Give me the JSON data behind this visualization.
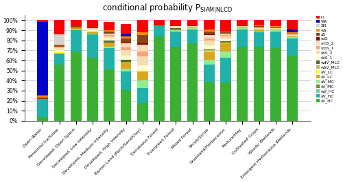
{
  "categories": [
    "Open Water",
    "Perennial Ice/Snow",
    "Developed, Open Space",
    "Developed, Low Intensity",
    "Developed, Medium Intensity",
    "Developed, High Intensity",
    "Barren Land (Rock/Sand/Clay)",
    "Deciduous Forest",
    "Evergreen Forest",
    "Mixed Forest",
    "Shrub/Scrub",
    "Grassland/Herbaceous",
    "Pasture/Hay",
    "Cultivated Crops",
    "Woody Wetlands",
    "Emergent Herbaceous Wetlands"
  ],
  "siam_labels": [
    "sV_HC",
    "aV_HC",
    "wV_HC",
    "sV_MC",
    "aV_MC",
    "sV_LC",
    "aV_LC",
    "wbV_MLC",
    "wdV_MLC",
    "sbS_1",
    "sbS_2",
    "smS_1",
    "smS_2",
    "sdS",
    "aS",
    "wS",
    "SN",
    "WA",
    "O"
  ],
  "colors": [
    "#3CB034",
    "#20B2AA",
    "#66CDAA",
    "#6B8E23",
    "#90EE90",
    "#DAA520",
    "#FFFF00",
    "#BDB76B",
    "#556B2F",
    "#FFFACD",
    "#F5DEB3",
    "#FFA07A",
    "#FFDAB9",
    "#8B0000",
    "#8B4513",
    "#FF8C00",
    "#D3D3D3",
    "#0000CC",
    "#FF0000"
  ],
  "vals": {
    "Open Water": [
      0.04,
      0.18,
      0.0,
      0.0,
      0.0,
      0.0,
      0.0,
      0.0,
      0.0,
      0.0,
      0.0,
      0.0,
      0.0,
      0.0,
      0.01,
      0.02,
      0.0,
      0.73,
      0.02
    ],
    "Perennial Ice/Snow": [
      0.56,
      0.1,
      0.0,
      0.01,
      0.0,
      0.0,
      0.01,
      0.0,
      0.0,
      0.02,
      0.02,
      0.01,
      0.01,
      0.0,
      0.01,
      0.01,
      0.1,
      0.0,
      0.14
    ],
    "Developed, Open Space": [
      0.69,
      0.21,
      0.0,
      0.0,
      0.01,
      0.02,
      0.0,
      0.0,
      0.0,
      0.0,
      0.0,
      0.0,
      0.0,
      0.0,
      0.01,
      0.0,
      0.0,
      0.0,
      0.06
    ],
    "Developed, Low Intensity": [
      0.63,
      0.23,
      0.0,
      0.0,
      0.01,
      0.02,
      0.0,
      0.0,
      0.0,
      0.01,
      0.01,
      0.0,
      0.01,
      0.0,
      0.01,
      0.0,
      0.0,
      0.0,
      0.07
    ],
    "Developed, Medium Intensity": [
      0.51,
      0.21,
      0.0,
      0.0,
      0.02,
      0.04,
      0.0,
      0.0,
      0.02,
      0.02,
      0.02,
      0.01,
      0.02,
      0.0,
      0.02,
      0.01,
      0.0,
      0.0,
      0.08
    ],
    "Developed, High Intensity": [
      0.31,
      0.18,
      0.0,
      0.0,
      0.03,
      0.05,
      0.01,
      0.0,
      0.03,
      0.04,
      0.05,
      0.03,
      0.04,
      0.01,
      0.04,
      0.02,
      0.0,
      0.03,
      0.09
    ],
    "Barren Land (Rock/Sand/Clay)": [
      0.18,
      0.15,
      0.0,
      0.0,
      0.07,
      0.09,
      0.0,
      0.0,
      0.0,
      0.06,
      0.09,
      0.05,
      0.07,
      0.01,
      0.08,
      0.03,
      0.0,
      0.0,
      0.12
    ],
    "Deciduous Forest": [
      0.84,
      0.11,
      0.0,
      0.0,
      0.0,
      0.0,
      0.0,
      0.0,
      0.0,
      0.0,
      0.0,
      0.0,
      0.0,
      0.0,
      0.0,
      0.0,
      0.0,
      0.0,
      0.05
    ],
    "Evergreen Forest": [
      0.74,
      0.15,
      0.0,
      0.0,
      0.01,
      0.01,
      0.0,
      0.0,
      0.01,
      0.0,
      0.01,
      0.0,
      0.01,
      0.0,
      0.01,
      0.0,
      0.0,
      0.0,
      0.05
    ],
    "Mixed Forest": [
      0.77,
      0.14,
      0.0,
      0.0,
      0.01,
      0.01,
      0.0,
      0.0,
      0.0,
      0.0,
      0.01,
      0.0,
      0.0,
      0.0,
      0.01,
      0.0,
      0.0,
      0.0,
      0.05
    ],
    "Shrub/Scrub": [
      0.39,
      0.17,
      0.0,
      0.0,
      0.05,
      0.07,
      0.01,
      0.01,
      0.01,
      0.04,
      0.05,
      0.02,
      0.03,
      0.01,
      0.03,
      0.02,
      0.0,
      0.0,
      0.09
    ],
    "Grassland/Herbaceous": [
      0.38,
      0.25,
      0.0,
      0.0,
      0.06,
      0.08,
      0.01,
      0.0,
      0.01,
      0.02,
      0.03,
      0.01,
      0.02,
      0.0,
      0.01,
      0.01,
      0.0,
      0.0,
      0.11
    ],
    "Pasture/Hay": [
      0.74,
      0.17,
      0.0,
      0.0,
      0.01,
      0.01,
      0.0,
      0.0,
      0.0,
      0.0,
      0.01,
      0.0,
      0.0,
      0.0,
      0.01,
      0.0,
      0.0,
      0.0,
      0.05
    ],
    "Cultivated Crops": [
      0.74,
      0.14,
      0.0,
      0.0,
      0.01,
      0.02,
      0.0,
      0.0,
      0.0,
      0.0,
      0.01,
      0.0,
      0.01,
      0.0,
      0.01,
      0.01,
      0.0,
      0.0,
      0.05
    ],
    "Woody Wetlands": [
      0.72,
      0.17,
      0.0,
      0.0,
      0.01,
      0.01,
      0.0,
      0.0,
      0.0,
      0.0,
      0.01,
      0.0,
      0.0,
      0.0,
      0.01,
      0.01,
      0.0,
      0.0,
      0.06
    ],
    "Emergent Herbaceous Wetlands": [
      0.65,
      0.17,
      0.0,
      0.0,
      0.01,
      0.01,
      0.0,
      0.0,
      0.0,
      0.0,
      0.01,
      0.0,
      0.01,
      0.0,
      0.01,
      0.01,
      0.0,
      0.03,
      0.09
    ]
  },
  "legend_labels_ordered": [
    "O",
    "WA",
    "SN",
    "wS",
    "aS",
    "sdS",
    "smS_2",
    "smS_1",
    "sbS_2",
    "sbS_1",
    "wdV_MLC",
    "wbV_MLC",
    "aV_LC",
    "sV_LC",
    "aV_MC",
    "sV_MC",
    "wV_HC",
    "aV_HC",
    "sV_HC"
  ],
  "legend_colors_ordered": [
    "#FF0000",
    "#0000CC",
    "#D3D3D3",
    "#FF8C00",
    "#8B4513",
    "#8B0000",
    "#FFDAB9",
    "#FFA07A",
    "#F5DEB3",
    "#FFFACD",
    "#556B2F",
    "#BDB76B",
    "#FFFF00",
    "#DAA520",
    "#90EE90",
    "#6B8E23",
    "#66CDAA",
    "#20B2AA",
    "#3CB034"
  ],
  "yticks": [
    0.0,
    0.1,
    0.2,
    0.3,
    0.4,
    0.5,
    0.6,
    0.7,
    0.8,
    0.9,
    1.0
  ],
  "yticklabels": [
    "0%",
    "10%",
    "20%",
    "30%",
    "40%",
    "50%",
    "60%",
    "70%",
    "80%",
    "90%",
    "100%"
  ]
}
